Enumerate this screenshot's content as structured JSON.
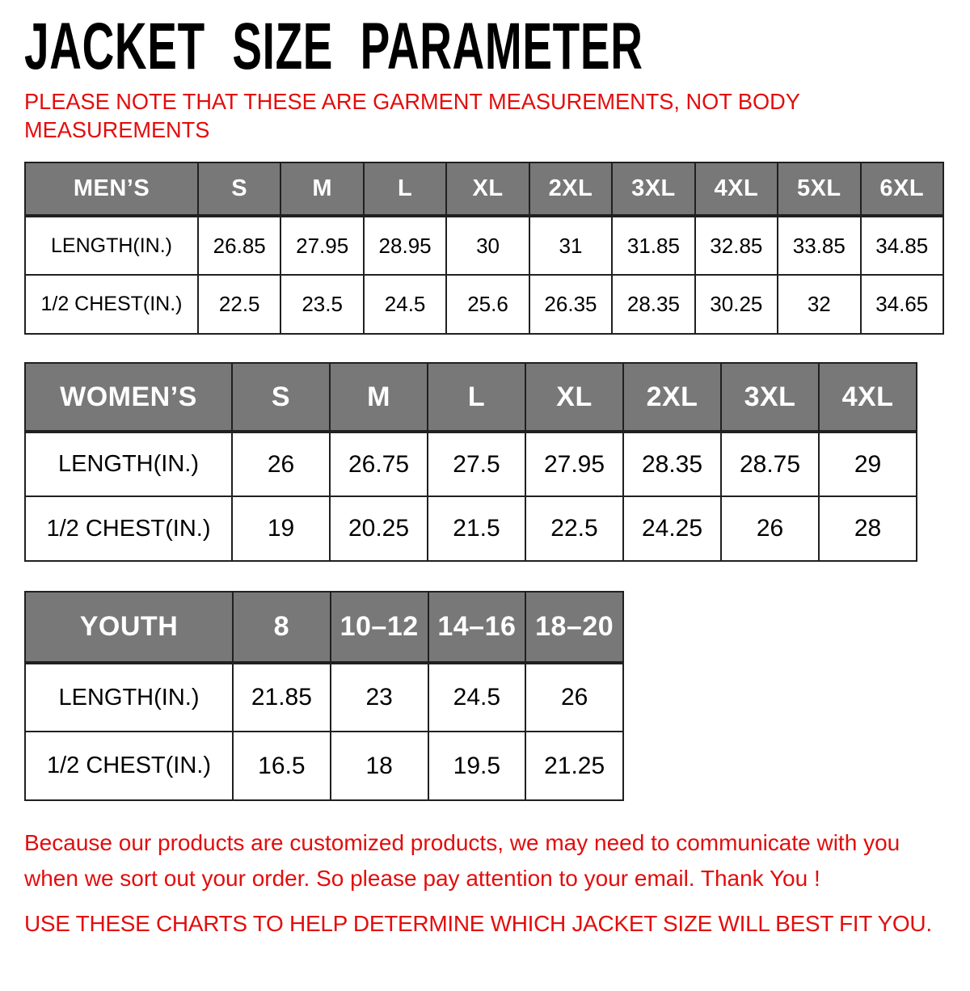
{
  "title": "JACKET SIZE PARAMETER",
  "note": {
    "line1": "PLEASE NOTE THAT THESE ARE GARMENT MEASUREMENTS, NOT BODY",
    "line2": "MEASUREMENTS"
  },
  "colors": {
    "accent_red": "#e30d0d",
    "header_gray": "#787878",
    "header_text": "#ffffff"
  },
  "tables": [
    {
      "name": "mens",
      "header": [
        "MEN’S",
        "S",
        "M",
        "L",
        "XL",
        "2XL",
        "3XL",
        "4XL",
        "5XL",
        "6XL"
      ],
      "rows": [
        {
          "label": "LENGTH(IN.)",
          "values": [
            "26.85",
            "27.95",
            "28.95",
            "30",
            "31",
            "31.85",
            "32.85",
            "33.85",
            "34.85"
          ]
        },
        {
          "label": "1/2 CHEST(IN.)",
          "values": [
            "22.5",
            "23.5",
            "24.5",
            "25.6",
            "26.35",
            "28.35",
            "30.25",
            "32",
            "34.65"
          ]
        }
      ]
    },
    {
      "name": "womens",
      "header": [
        "WOMEN’S",
        "S",
        "M",
        "L",
        "XL",
        "2XL",
        "3XL",
        "4XL"
      ],
      "rows": [
        {
          "label": "LENGTH(IN.)",
          "values": [
            "26",
            "26.75",
            "27.5",
            "27.95",
            "28.35",
            "28.75",
            "29"
          ]
        },
        {
          "label": "1/2 CHEST(IN.)",
          "values": [
            "19",
            "20.25",
            "21.5",
            "22.5",
            "24.25",
            "26",
            "28"
          ]
        }
      ]
    },
    {
      "name": "youth",
      "header": [
        "YOUTH",
        "8",
        "10–12",
        "14–16",
        "18–20"
      ],
      "rows": [
        {
          "label": "LENGTH(IN.)",
          "values": [
            "21.85",
            "23",
            "24.5",
            "26"
          ]
        },
        {
          "label": "1/2 CHEST(IN.)",
          "values": [
            "16.5",
            "18",
            "19.5",
            "21.25"
          ]
        }
      ]
    }
  ],
  "footer": {
    "para_line1": "Because our products are customized products, we may need to communicate with you",
    "para_line2": "when we sort out your order. So please pay attention to your email. Thank You !",
    "final_note": "USE THESE CHARTS TO HELP DETERMINE WHICH JACKET SIZE WILL BEST FIT YOU."
  }
}
